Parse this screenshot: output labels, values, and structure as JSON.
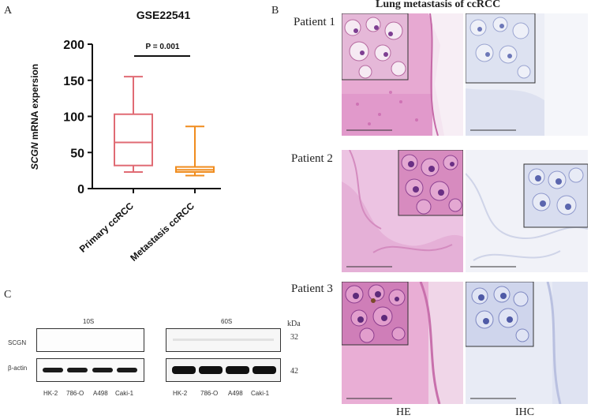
{
  "figure": {
    "panel_letters": [
      "A",
      "B",
      "C"
    ],
    "colors": {
      "primary": "#e06b74",
      "metastasis": "#f08c1e",
      "he_bg": "#e9b0d6",
      "he_dark": "#c254a3",
      "ihc_bg": "#eceef6",
      "ihc_dark": "#a5aed6",
      "blot_band": "#1a1a1a"
    }
  },
  "panelA": {
    "chart_data": {
      "type": "box",
      "title": "GSE22541",
      "ylabel_italic": "SCGN",
      "ylabel_rest": " mRNA expersion",
      "ylim": [
        0,
        200
      ],
      "yticks": [
        0,
        50,
        100,
        150,
        200
      ],
      "categories": [
        "Primary ccRCC",
        "Metastasis ccRCC"
      ],
      "series": [
        {
          "name": "Primary ccRCC",
          "min": 23,
          "q1": 32,
          "median": 64,
          "q3": 103,
          "max": 155,
          "color": "#e06b74"
        },
        {
          "name": "Metastasis ccRCC",
          "min": 18,
          "q1": 23,
          "median": 26,
          "q3": 30,
          "max": 86,
          "color": "#f08c1e"
        }
      ],
      "annotation": "P = 0.001"
    }
  },
  "panelB": {
    "title": "Lung metastasis of ccRCC",
    "patients": [
      "Patient 1",
      "Patient 2",
      "Patient 3"
    ],
    "column_labels": [
      "HE",
      "IHC"
    ]
  },
  "panelC": {
    "blots": [
      {
        "exposure": "10S",
        "lanes": [
          "HK-2",
          "786-O",
          "A498",
          "Caki-1"
        ]
      },
      {
        "exposure": "60S",
        "lanes": [
          "HK-2",
          "786-O",
          "A498",
          "Caki-1"
        ]
      }
    ],
    "row_labels": [
      "SCGN",
      "β-actin"
    ],
    "kda_label": "kDa",
    "kda_values": [
      "32",
      "42"
    ]
  }
}
